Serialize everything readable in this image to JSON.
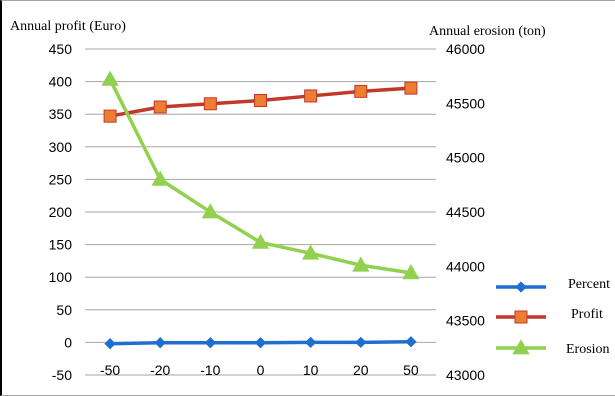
{
  "chart_data": {
    "type": "line",
    "left_axis_title": "Annual profit (Euro)",
    "right_axis_title": "Annual erosion (ton)",
    "categories": [
      "-50",
      "-20",
      "-10",
      "0",
      "10",
      "20",
      "50"
    ],
    "left_ylim": [
      -50,
      450
    ],
    "left_yticks": [
      -50,
      0,
      50,
      100,
      150,
      200,
      250,
      300,
      350,
      400,
      450
    ],
    "right_ylim": [
      43000,
      46000
    ],
    "right_yticks": [
      43000,
      43500,
      44000,
      44500,
      45000,
      45500,
      46000
    ],
    "grid": "horizontal",
    "legend_position": "right",
    "series": [
      {
        "name": "Percent",
        "axis": "left",
        "color": "#1f6fd1",
        "marker": "diamond",
        "values": [
          -2,
          -0.5,
          -0.5,
          -0.5,
          0,
          0,
          1
        ]
      },
      {
        "name": "Profit",
        "axis": "left",
        "color": "#c0392b",
        "marker_fill": "#ed7d31",
        "marker": "square",
        "values": [
          347,
          361,
          366,
          371,
          378,
          385,
          390
        ]
      },
      {
        "name": "Erosion",
        "axis": "right",
        "color": "#92d050",
        "marker": "triangle",
        "values": [
          45720,
          44800,
          44500,
          44220,
          44120,
          44010,
          43940
        ]
      }
    ]
  }
}
